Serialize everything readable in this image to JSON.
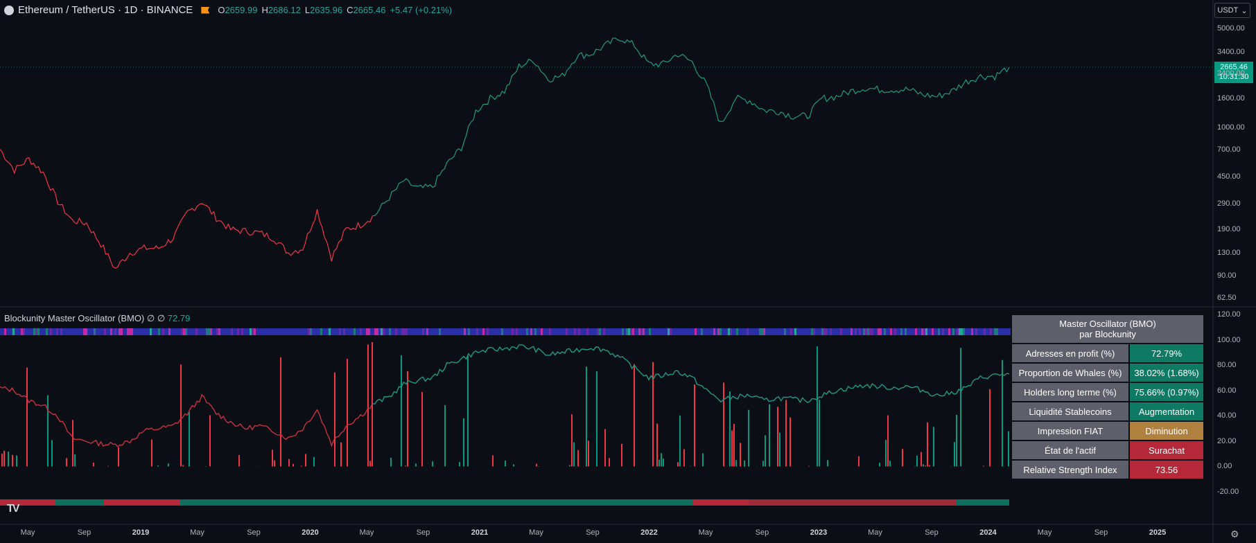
{
  "header": {
    "symbol": "Ethereum / TetherUS · 1D · BINANCE",
    "ohlc": [
      {
        "k": "O",
        "v": "2659.99"
      },
      {
        "k": "H",
        "v": "2686.12"
      },
      {
        "k": "L",
        "v": "2635.96"
      },
      {
        "k": "C",
        "v": "2665.46"
      },
      {
        "k": "",
        "v": "+5.47 (+0.21%)"
      }
    ]
  },
  "currency_button": "USDT",
  "last_price": {
    "price": "2665.46",
    "countdown": "10:31:30"
  },
  "indicator": {
    "title": "Blockunity Master Oscillator (BMO)",
    "symbols": "∅ ∅",
    "value": "72.79"
  },
  "colors": {
    "up": "#089981",
    "down": "#f23645",
    "grid": "#1c1f28",
    "line_green": "#1f9a82",
    "neutral": "#b08040"
  },
  "bmo_table": {
    "title_line1": "Master Oscillator (BMO)",
    "title_line2": "par Blockunity",
    "rows": [
      {
        "label": "Adresses en profit (%)",
        "value": "72.79%",
        "color": "#0e7a63"
      },
      {
        "label": "Proportion de Whales (%)",
        "value": "38.02% (1.68%)",
        "color": "#0e7a63"
      },
      {
        "label": "Holders long terme (%)",
        "value": "75.66% (0.97%)",
        "color": "#0e7a63"
      },
      {
        "label": "Liquidité Stablecoins",
        "value": "Augmentation",
        "color": "#0e7a63"
      },
      {
        "label": "Impression FIAT",
        "value": "Diminution",
        "color": "#b0803f"
      },
      {
        "label": "État de l'actif",
        "value": "Surachat",
        "color": "#b4283a"
      },
      {
        "label": "Relative Strength Index",
        "value": "73.56",
        "color": "#b4283a"
      }
    ]
  },
  "x_axis": [
    "May",
    "Sep",
    "2019",
    "May",
    "Sep",
    "2020",
    "May",
    "Sep",
    "2021",
    "May",
    "Sep",
    "2022",
    "May",
    "Sep",
    "2023",
    "May",
    "Sep",
    "2024",
    "May",
    "Sep",
    "2025"
  ],
  "chart_data": [
    {
      "type": "line",
      "title": "Ethereum / TetherUS · 1D · BINANCE",
      "scale": "log",
      "y_ticks": [
        5000,
        3400,
        2400,
        1600,
        1000,
        700,
        450,
        290,
        190,
        130,
        90,
        62.5
      ],
      "y_tick_labels": [
        "5000.00",
        "3400.00",
        "2400.00",
        "1600.00",
        "1000.00",
        "700.00",
        "450.00",
        "290.00",
        "190.00",
        "130.00",
        "90.00",
        "62.50"
      ],
      "x": [
        "2018-04",
        "2018-05",
        "2018-06",
        "2018-07",
        "2018-08",
        "2018-09",
        "2018-10",
        "2018-11",
        "2018-12",
        "2019-01",
        "2019-02",
        "2019-03",
        "2019-04",
        "2019-05",
        "2019-06",
        "2019-07",
        "2019-08",
        "2019-09",
        "2019-10",
        "2019-11",
        "2019-12",
        "2020-01",
        "2020-02",
        "2020-03",
        "2020-04",
        "2020-05",
        "2020-06",
        "2020-07",
        "2020-08",
        "2020-09",
        "2020-10",
        "2020-11",
        "2020-12",
        "2021-01",
        "2021-02",
        "2021-03",
        "2021-04",
        "2021-05",
        "2021-06",
        "2021-07",
        "2021-08",
        "2021-09",
        "2021-10",
        "2021-11",
        "2021-12",
        "2022-01",
        "2022-02",
        "2022-03",
        "2022-04",
        "2022-05",
        "2022-06",
        "2022-07",
        "2022-08",
        "2022-09",
        "2022-10",
        "2022-11",
        "2022-12",
        "2023-01",
        "2023-02",
        "2023-03",
        "2023-04",
        "2023-05",
        "2023-06",
        "2023-07",
        "2023-08",
        "2023-09",
        "2023-10",
        "2023-11",
        "2023-12",
        "2024-01",
        "2024-02"
      ],
      "values": [
        700,
        500,
        600,
        480,
        300,
        220,
        210,
        150,
        100,
        130,
        140,
        140,
        165,
        250,
        300,
        230,
        190,
        185,
        180,
        165,
        130,
        140,
        260,
        120,
        190,
        205,
        240,
        320,
        420,
        370,
        380,
        550,
        720,
        1300,
        1600,
        1800,
        2700,
        3000,
        2200,
        2300,
        3200,
        3300,
        3800,
        4300,
        3800,
        2800,
        2800,
        3300,
        2900,
        2000,
        1050,
        1600,
        1550,
        1320,
        1300,
        1200,
        1200,
        1600,
        1650,
        1800,
        1900,
        1850,
        1850,
        1850,
        1700,
        1650,
        1800,
        2100,
        2300,
        2300,
        2665
      ]
    },
    {
      "type": "line",
      "title": "Blockunity Master Oscillator (BMO)",
      "series_value": 72.79,
      "y_ticks": [
        120,
        100,
        80,
        60,
        40,
        20,
        0,
        -20
      ],
      "y_tick_labels": [
        "120.00",
        "100.00",
        "80.00",
        "60.00",
        "40.00",
        "20.00",
        "0.00",
        "-20.00"
      ],
      "x": [
        "2018-04",
        "2018-05",
        "2018-06",
        "2018-07",
        "2018-08",
        "2018-09",
        "2018-10",
        "2018-11",
        "2018-12",
        "2019-01",
        "2019-02",
        "2019-03",
        "2019-04",
        "2019-05",
        "2019-06",
        "2019-07",
        "2019-08",
        "2019-09",
        "2019-10",
        "2019-11",
        "2019-12",
        "2020-01",
        "2020-02",
        "2020-03",
        "2020-04",
        "2020-05",
        "2020-06",
        "2020-07",
        "2020-08",
        "2020-09",
        "2020-10",
        "2020-11",
        "2020-12",
        "2021-01",
        "2021-02",
        "2021-03",
        "2021-04",
        "2021-05",
        "2021-06",
        "2021-07",
        "2021-08",
        "2021-09",
        "2021-10",
        "2021-11",
        "2021-12",
        "2022-01",
        "2022-02",
        "2022-03",
        "2022-04",
        "2022-05",
        "2022-06",
        "2022-07",
        "2022-08",
        "2022-09",
        "2022-10",
        "2022-11",
        "2022-12",
        "2023-01",
        "2023-02",
        "2023-03",
        "2023-04",
        "2023-05",
        "2023-06",
        "2023-07",
        "2023-08",
        "2023-09",
        "2023-10",
        "2023-11",
        "2023-12",
        "2024-01",
        "2024-02"
      ],
      "values": [
        62,
        60,
        52,
        48,
        40,
        22,
        20,
        18,
        17,
        20,
        28,
        30,
        32,
        42,
        55,
        42,
        35,
        30,
        32,
        28,
        22,
        30,
        45,
        18,
        32,
        40,
        50,
        55,
        65,
        68,
        70,
        80,
        85,
        90,
        92,
        93,
        95,
        93,
        88,
        90,
        92,
        94,
        92,
        86,
        78,
        70,
        72,
        75,
        70,
        60,
        52,
        55,
        56,
        52,
        54,
        53,
        52,
        56,
        60,
        62,
        64,
        63,
        62,
        63,
        60,
        56,
        58,
        62,
        70,
        72,
        73
      ]
    }
  ]
}
